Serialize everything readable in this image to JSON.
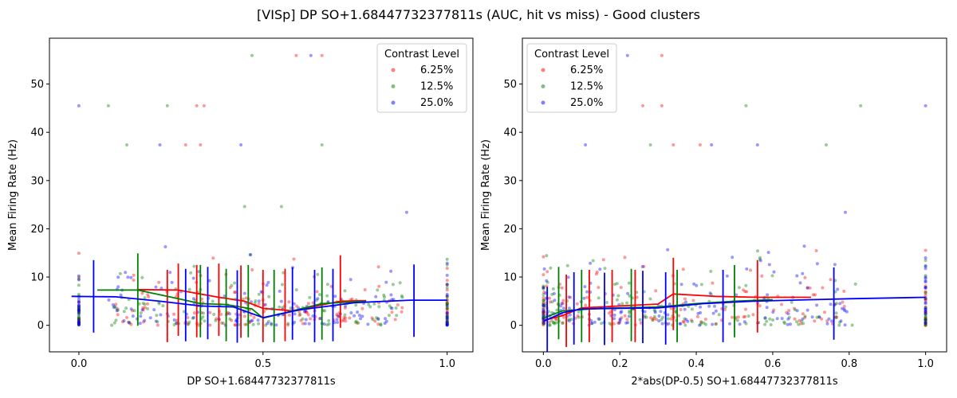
{
  "figure": {
    "title": "[VISp] DP SO+1.68447732377811s (AUC, hit vs miss) - Good clusters"
  },
  "chart_data": [
    {
      "type": "scatter",
      "xlabel": "DP SO+1.68447732377811s",
      "ylabel": "Mean Firing Rate (Hz)",
      "xlim": [
        -0.08,
        1.07
      ],
      "ylim": [
        -5.5,
        59.5
      ],
      "xticks": [
        0.0,
        0.5,
        1.0
      ],
      "xtick_labels": [
        "0.0",
        "0.5",
        "1.0"
      ],
      "yticks": [
        0,
        10,
        20,
        30,
        40,
        50
      ],
      "ytick_labels": [
        "0",
        "10",
        "20",
        "30",
        "40",
        "50"
      ],
      "legend": {
        "title": "Contrast Level",
        "placement": "upper right",
        "entries": [
          "6.25%",
          "12.5%",
          "25.0%"
        ]
      },
      "colors": [
        "#ff0000",
        "#008000",
        "#0000ff"
      ],
      "series": [
        {
          "name": "6.25%",
          "outliers": [
            [
              0.32,
              45.5
            ],
            [
              0.34,
              45.5
            ],
            [
              0.29,
              37.4
            ],
            [
              0.33,
              37.4
            ],
            [
              0.59,
              55.9
            ],
            [
              0.66,
              55.9
            ]
          ],
          "trend": [
            [
              0.16,
              7.4
            ],
            [
              0.27,
              7.3
            ],
            [
              0.38,
              5.8
            ],
            [
              0.45,
              5.0
            ],
            [
              0.5,
              3.5
            ],
            [
              0.58,
              3.0
            ],
            [
              0.71,
              5.0
            ],
            [
              0.78,
              5.1
            ]
          ],
          "errors": [
            [
              0.24,
              4.0
            ],
            [
              0.27,
              5.3
            ],
            [
              0.32,
              5.0
            ],
            [
              0.38,
              5.3
            ],
            [
              0.44,
              4.9
            ],
            [
              0.5,
              4.0
            ],
            [
              0.56,
              4.2
            ],
            [
              0.71,
              7.0
            ]
          ]
        },
        {
          "name": "12.5%",
          "outliers": [
            [
              0.08,
              45.5
            ],
            [
              0.24,
              45.5
            ],
            [
              0.13,
              37.4
            ],
            [
              0.66,
              37.4
            ],
            [
              0.47,
              55.9
            ],
            [
              0.45,
              24.6
            ],
            [
              0.55,
              24.6
            ]
          ],
          "trend": [
            [
              0.05,
              7.3
            ],
            [
              0.16,
              7.3
            ],
            [
              0.27,
              5.5
            ],
            [
              0.33,
              4.5
            ],
            [
              0.4,
              4.3
            ],
            [
              0.47,
              3.4
            ],
            [
              0.5,
              1.5
            ],
            [
              0.57,
              2.8
            ],
            [
              0.66,
              4.5
            ],
            [
              0.78,
              5.0
            ]
          ],
          "errors": [
            [
              0.16,
              7.4
            ],
            [
              0.33,
              5.0
            ],
            [
              0.4,
              4.2
            ],
            [
              0.46,
              5.0
            ],
            [
              0.53,
              4.0
            ],
            [
              0.66,
              4.5
            ]
          ]
        },
        {
          "name": "25.0%",
          "outliers": [
            [
              0.0,
              45.5
            ],
            [
              0.22,
              37.4
            ],
            [
              0.44,
              37.4
            ],
            [
              0.63,
              55.9
            ],
            [
              0.89,
              23.4
            ]
          ],
          "trend": [
            [
              -0.02,
              6.0
            ],
            [
              0.1,
              5.9
            ],
            [
              0.22,
              5.0
            ],
            [
              0.33,
              4.0
            ],
            [
              0.42,
              3.8
            ],
            [
              0.5,
              1.6
            ],
            [
              0.6,
              3.2
            ],
            [
              0.75,
              4.7
            ],
            [
              0.9,
              5.2
            ],
            [
              1.0,
              5.2
            ]
          ],
          "errors": [
            [
              0.04,
              6.0
            ],
            [
              0.29,
              4.2
            ],
            [
              0.35,
              4.6
            ],
            [
              0.43,
              3.9
            ],
            [
              0.58,
              4.5
            ],
            [
              0.64,
              4.0
            ],
            [
              0.69,
              4.2
            ],
            [
              0.91,
              5.1
            ]
          ]
        }
      ]
    },
    {
      "type": "scatter",
      "xlabel": "2*abs(DP-0.5) SO+1.68447732377811s",
      "ylabel": "Mean Firing Rate (Hz)",
      "xlim": [
        -0.055,
        1.055
      ],
      "ylim": [
        -5.5,
        59.5
      ],
      "xticks": [
        0.0,
        0.2,
        0.4,
        0.6,
        0.8,
        1.0
      ],
      "xtick_labels": [
        "0.0",
        "0.2",
        "0.4",
        "0.6",
        "0.8",
        "1.0"
      ],
      "yticks": [
        0,
        10,
        20,
        30,
        40,
        50
      ],
      "ytick_labels": [
        "0",
        "10",
        "20",
        "30",
        "40",
        "50"
      ],
      "legend": {
        "title": "Contrast Level",
        "placement": "upper left",
        "entries": [
          "6.25%",
          "12.5%",
          "25.0%"
        ]
      },
      "colors": [
        "#ff0000",
        "#008000",
        "#0000ff"
      ],
      "series": [
        {
          "name": "6.25%",
          "outliers": [
            [
              0.26,
              45.5
            ],
            [
              0.31,
              45.5
            ],
            [
              0.34,
              37.4
            ],
            [
              0.41,
              37.4
            ],
            [
              0.31,
              55.9
            ]
          ],
          "trend": [
            [
              0.0,
              1.0
            ],
            [
              0.05,
              2.0
            ],
            [
              0.1,
              3.6
            ],
            [
              0.2,
              4.0
            ],
            [
              0.3,
              4.4
            ],
            [
              0.34,
              6.5
            ],
            [
              0.45,
              6.0
            ],
            [
              0.56,
              5.8
            ],
            [
              0.7,
              5.8
            ]
          ],
          "errors": [
            [
              0.06,
              3.0
            ],
            [
              0.12,
              4.0
            ],
            [
              0.18,
              4.0
            ],
            [
              0.24,
              4.0
            ],
            [
              0.34,
              6.5
            ],
            [
              0.56,
              6.0
            ]
          ]
        },
        {
          "name": "12.5%",
          "outliers": [
            [
              0.28,
              37.4
            ],
            [
              0.53,
              45.5
            ],
            [
              0.83,
              45.5
            ],
            [
              0.74,
              37.4
            ]
          ],
          "trend": [
            [
              0.0,
              1.5
            ],
            [
              0.05,
              3.0
            ],
            [
              0.15,
              3.5
            ],
            [
              0.3,
              3.8
            ],
            [
              0.4,
              4.5
            ],
            [
              0.5,
              5.0
            ],
            [
              0.6,
              5.3
            ]
          ],
          "errors": [
            [
              0.04,
              4.6
            ],
            [
              0.1,
              4.0
            ],
            [
              0.23,
              4.2
            ],
            [
              0.35,
              4.0
            ],
            [
              0.5,
              5.0
            ]
          ]
        },
        {
          "name": "25.0%",
          "outliers": [
            [
              0.22,
              55.9
            ],
            [
              0.11,
              37.4
            ],
            [
              0.44,
              37.4
            ],
            [
              0.56,
              37.4
            ],
            [
              0.79,
              23.4
            ],
            [
              1.0,
              45.5
            ]
          ],
          "trend": [
            [
              0.0,
              0.8
            ],
            [
              0.05,
              2.6
            ],
            [
              0.1,
              3.4
            ],
            [
              0.2,
              3.5
            ],
            [
              0.3,
              3.6
            ],
            [
              0.42,
              4.5
            ],
            [
              0.55,
              5.0
            ],
            [
              0.7,
              5.3
            ],
            [
              0.8,
              5.5
            ],
            [
              1.0,
              5.8
            ]
          ],
          "errors": [
            [
              0.01,
              0.5
            ],
            [
              0.08,
              3.5
            ],
            [
              0.16,
              3.4
            ],
            [
              0.26,
              3.8
            ],
            [
              0.32,
              3.5
            ],
            [
              0.47,
              4.0
            ],
            [
              0.76,
              4.5
            ]
          ]
        }
      ]
    }
  ]
}
